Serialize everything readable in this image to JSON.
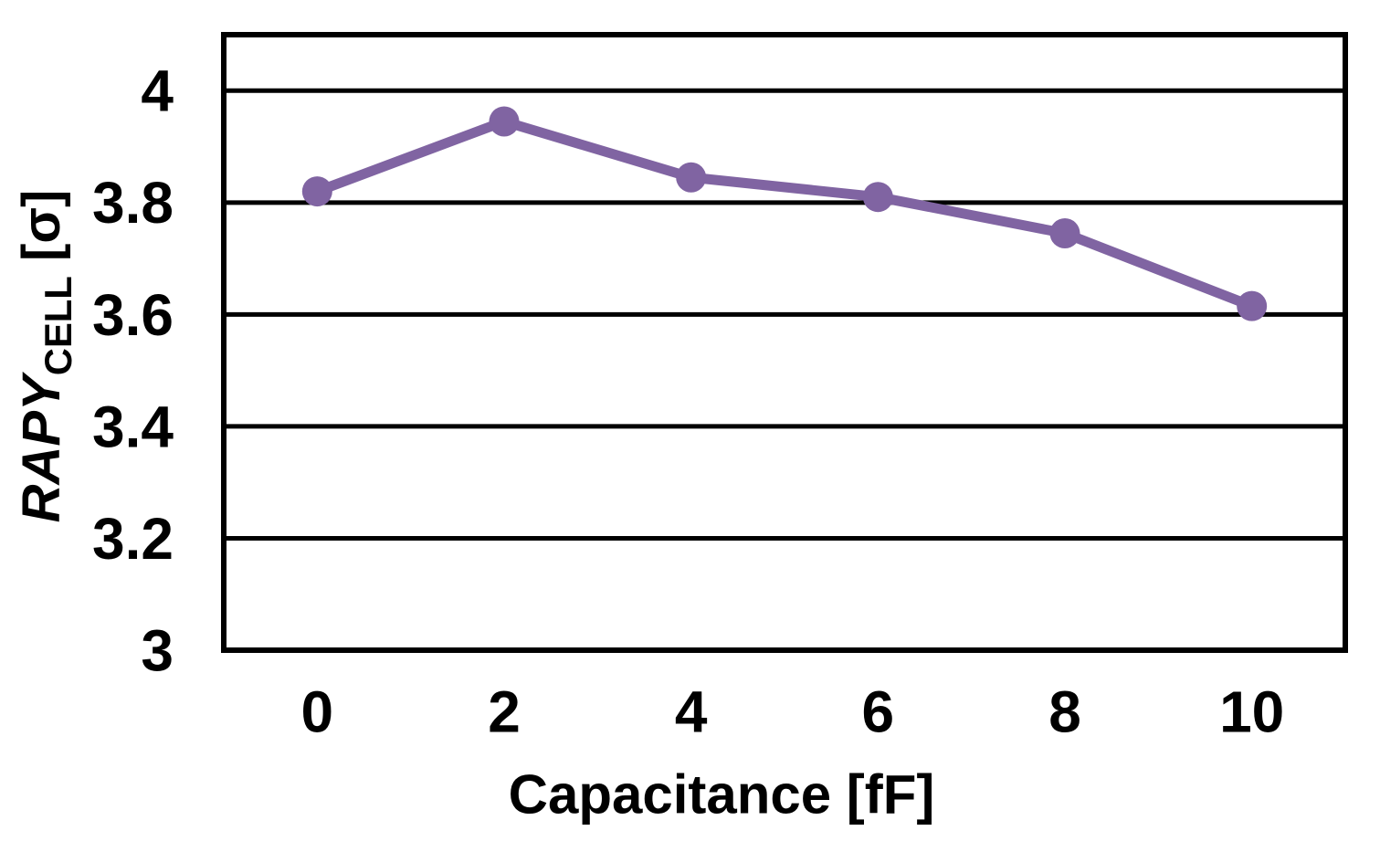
{
  "chart_data": {
    "type": "line",
    "title": "",
    "xlabel": "Capacitance [fF]",
    "ylabel_main": "RAPY",
    "ylabel_sub": "CELL",
    "ylabel_unit": "[σ]",
    "x": [
      0,
      2,
      4,
      6,
      8,
      10
    ],
    "y": [
      3.82,
      3.945,
      3.845,
      3.81,
      3.745,
      3.615
    ],
    "xticks": {
      "values": [
        0,
        2,
        4,
        6,
        8,
        10
      ],
      "labels": [
        "0",
        "2",
        "4",
        "6",
        "8",
        "10"
      ]
    },
    "yticks": {
      "values": [
        3,
        3.2,
        3.4,
        3.6,
        3.8,
        4
      ],
      "labels": [
        "3",
        "3.2",
        "3.4",
        "3.6",
        "3.8",
        "4"
      ]
    },
    "xlim": [
      -1,
      11
    ],
    "ylim": [
      3,
      4.1
    ],
    "grid": "horizontal",
    "legend": "none",
    "line_color": "#8064A2",
    "marker": "circle",
    "axis_color": "#000000",
    "background_color": "#FFFFFF"
  }
}
